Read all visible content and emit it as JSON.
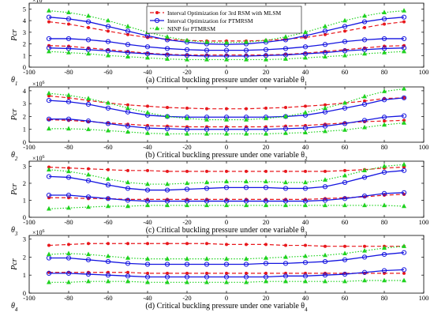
{
  "legend": {
    "position": "top-center",
    "entries": [
      {
        "label": "Interval Optimization for 3rd RSM with MLSM",
        "color": "#e8161b",
        "style": "dashed",
        "marker": "dot"
      },
      {
        "label": "Interval Optimization for PTMRSM",
        "color": "#1515e0",
        "style": "solid",
        "marker": "circle"
      },
      {
        "label": "NINP for PTMRSM",
        "color": "#1fd21f",
        "style": "dotted",
        "marker": "triangle"
      }
    ]
  },
  "colors": {
    "rsm": "#e8161b",
    "ptm": "#1515e0",
    "ninp": "#1fd21f"
  },
  "chart_data": [
    {
      "type": "line",
      "title": "(a) Critical buckling pressure under one variable θ1",
      "ylabel": "Pcr",
      "xlabel": "θ1",
      "exponent": "×10^6",
      "xlim": [
        -100,
        100
      ],
      "ylim": [
        0,
        5.5
      ],
      "xticks": [
        -100,
        -80,
        -60,
        -40,
        -20,
        0,
        20,
        40,
        60,
        80,
        100
      ],
      "yticks": [
        0,
        1,
        2,
        3,
        4,
        5
      ],
      "x": [
        -90,
        -80,
        -70,
        -60,
        -50,
        -40,
        -30,
        -20,
        -10,
        0,
        10,
        20,
        30,
        40,
        50,
        60,
        70,
        80,
        90
      ],
      "series": [
        {
          "name": "Interval Optimization for 3rd RSM with MLSM",
          "key": "rsm",
          "values": [
            3.9,
            3.7,
            3.4,
            3.1,
            2.8,
            2.55,
            2.4,
            2.3,
            2.25,
            2.25,
            2.25,
            2.3,
            2.4,
            2.55,
            2.8,
            3.1,
            3.4,
            3.7,
            3.9
          ]
        },
        {
          "key": "rsm",
          "values": [
            1.85,
            1.8,
            1.65,
            1.5,
            1.35,
            1.2,
            1.1,
            1.05,
            1.05,
            1.05,
            1.05,
            1.05,
            1.1,
            1.2,
            1.35,
            1.5,
            1.65,
            1.8,
            1.85
          ]
        },
        {
          "name": "Interval Optimization for PTMRSM",
          "key": "ptm",
          "values": [
            4.3,
            4.15,
            3.9,
            3.5,
            3.1,
            2.7,
            2.35,
            2.15,
            2.0,
            1.95,
            2.0,
            2.15,
            2.35,
            2.7,
            3.1,
            3.5,
            3.9,
            4.15,
            4.3
          ]
        },
        {
          "key": "ptm",
          "values": [
            2.45,
            2.45,
            2.35,
            2.2,
            1.95,
            1.75,
            1.6,
            1.5,
            1.45,
            1.45,
            1.45,
            1.5,
            1.6,
            1.75,
            1.95,
            2.2,
            2.35,
            2.45,
            2.45
          ]
        },
        {
          "key": "ptm",
          "values": [
            1.65,
            1.6,
            1.5,
            1.4,
            1.25,
            1.15,
            1.05,
            1.0,
            0.95,
            0.95,
            0.95,
            1.0,
            1.05,
            1.15,
            1.25,
            1.4,
            1.5,
            1.6,
            1.65
          ]
        },
        {
          "name": "NINP for PTMRSM",
          "key": "ninp",
          "values": [
            4.85,
            4.7,
            4.4,
            4.0,
            3.5,
            3.0,
            2.6,
            2.3,
            2.15,
            2.1,
            2.15,
            2.3,
            2.6,
            3.0,
            3.5,
            4.0,
            4.4,
            4.7,
            4.85
          ]
        },
        {
          "key": "ninp",
          "values": [
            1.35,
            1.25,
            1.15,
            1.0,
            0.9,
            0.8,
            0.7,
            0.65,
            0.65,
            0.65,
            0.65,
            0.65,
            0.7,
            0.8,
            0.9,
            1.0,
            1.15,
            1.25,
            1.35
          ]
        }
      ]
    },
    {
      "type": "line",
      "title": "(b) Critical buckling pressure under one variable θ2",
      "ylabel": "Pcr",
      "xlabel": "θ2",
      "exponent": "×10^6",
      "xlim": [
        -100,
        100
      ],
      "ylim": [
        0,
        4.3
      ],
      "xticks": [
        -100,
        -80,
        -60,
        -40,
        -20,
        0,
        20,
        40,
        60,
        80,
        100
      ],
      "yticks": [
        0,
        1,
        2,
        3,
        4
      ],
      "x": [
        -90,
        -80,
        -70,
        -60,
        -50,
        -40,
        -30,
        -20,
        -10,
        0,
        10,
        20,
        30,
        40,
        50,
        60,
        70,
        80,
        90
      ],
      "series": [
        {
          "key": "rsm",
          "values": [
            3.6,
            3.45,
            3.25,
            3.05,
            2.9,
            2.8,
            2.7,
            2.65,
            2.6,
            2.6,
            2.6,
            2.65,
            2.7,
            2.8,
            2.9,
            3.05,
            3.2,
            3.4,
            3.45
          ]
        },
        {
          "key": "rsm",
          "values": [
            1.75,
            1.7,
            1.6,
            1.5,
            1.4,
            1.3,
            1.25,
            1.2,
            1.2,
            1.2,
            1.2,
            1.2,
            1.25,
            1.3,
            1.4,
            1.5,
            1.6,
            1.65,
            1.7
          ]
        },
        {
          "key": "ptm",
          "values": [
            3.25,
            3.15,
            2.95,
            2.65,
            2.35,
            2.1,
            2.0,
            1.95,
            1.95,
            1.95,
            1.95,
            1.95,
            2.0,
            2.1,
            2.35,
            2.65,
            2.95,
            3.3,
            3.45
          ]
        },
        {
          "key": "ptm",
          "values": [
            1.8,
            1.8,
            1.65,
            1.45,
            1.25,
            1.1,
            1.05,
            1.0,
            1.0,
            1.0,
            1.0,
            1.0,
            1.05,
            1.1,
            1.25,
            1.45,
            1.7,
            1.95,
            2.05
          ]
        },
        {
          "key": "ninp",
          "values": [
            3.8,
            3.65,
            3.4,
            3.05,
            2.65,
            2.3,
            2.0,
            1.85,
            1.75,
            1.75,
            1.75,
            1.85,
            2.0,
            2.3,
            2.65,
            3.05,
            3.55,
            3.95,
            4.15
          ]
        },
        {
          "key": "ninp",
          "values": [
            1.05,
            1.05,
            1.0,
            0.9,
            0.8,
            0.7,
            0.65,
            0.65,
            0.65,
            0.65,
            0.65,
            0.65,
            0.7,
            0.75,
            0.85,
            0.95,
            1.15,
            1.35,
            1.5
          ]
        }
      ]
    },
    {
      "type": "line",
      "title": "(c) Critical buckling pressure under one variable θ3",
      "ylabel": "Pcr",
      "xlabel": "θ3",
      "exponent": "×10^6",
      "xlim": [
        -100,
        100
      ],
      "ylim": [
        0,
        3.3
      ],
      "xticks": [
        -100,
        -80,
        -60,
        -40,
        -20,
        0,
        20,
        40,
        60,
        80,
        100
      ],
      "yticks": [
        0,
        1,
        2,
        3
      ],
      "x": [
        -90,
        -80,
        -70,
        -60,
        -50,
        -40,
        -30,
        -20,
        -10,
        0,
        10,
        20,
        30,
        40,
        50,
        60,
        70,
        80,
        90
      ],
      "series": [
        {
          "key": "rsm",
          "values": [
            2.95,
            2.9,
            2.85,
            2.8,
            2.75,
            2.75,
            2.7,
            2.7,
            2.7,
            2.7,
            2.7,
            2.7,
            2.7,
            2.7,
            2.7,
            2.75,
            2.8,
            2.9,
            2.95
          ]
        },
        {
          "key": "rsm",
          "values": [
            1.15,
            1.15,
            1.1,
            1.1,
            1.05,
            1.05,
            1.05,
            1.05,
            1.05,
            1.05,
            1.05,
            1.05,
            1.05,
            1.05,
            1.1,
            1.15,
            1.2,
            1.3,
            1.35
          ]
        },
        {
          "key": "ptm",
          "values": [
            2.4,
            2.35,
            2.15,
            1.9,
            1.7,
            1.6,
            1.6,
            1.65,
            1.7,
            1.75,
            1.75,
            1.75,
            1.7,
            1.7,
            1.8,
            2.05,
            2.35,
            2.65,
            2.75
          ]
        },
        {
          "key": "ptm",
          "values": [
            1.3,
            1.3,
            1.2,
            1.1,
            1.0,
            0.95,
            0.95,
            0.95,
            0.95,
            0.95,
            0.95,
            0.95,
            0.95,
            0.95,
            1.0,
            1.1,
            1.25,
            1.4,
            1.45
          ]
        },
        {
          "key": "ninp",
          "values": [
            2.8,
            2.7,
            2.5,
            2.25,
            2.05,
            1.95,
            1.95,
            2.0,
            2.05,
            2.1,
            2.1,
            2.1,
            2.05,
            2.05,
            2.2,
            2.45,
            2.75,
            3.0,
            3.1
          ]
        },
        {
          "key": "ninp",
          "values": [
            0.5,
            0.55,
            0.6,
            0.65,
            0.65,
            0.7,
            0.7,
            0.7,
            0.7,
            0.7,
            0.7,
            0.7,
            0.7,
            0.7,
            0.7,
            0.7,
            0.7,
            0.7,
            0.65
          ]
        }
      ]
    },
    {
      "type": "line",
      "title": "(d) Critical buckling pressure under one variable θ4",
      "ylabel": "Pcr",
      "xlabel": "θ4",
      "exponent": "×10^6",
      "xlim": [
        -100,
        100
      ],
      "ylim": [
        0,
        3.2
      ],
      "xticks": [
        -100,
        -80,
        -60,
        -40,
        -20,
        0,
        20,
        40,
        60,
        80,
        100
      ],
      "yticks": [
        0,
        1,
        2,
        3
      ],
      "x": [
        -90,
        -80,
        -70,
        -60,
        -50,
        -40,
        -30,
        -20,
        -10,
        0,
        10,
        20,
        30,
        40,
        50,
        60,
        70,
        80,
        90
      ],
      "series": [
        {
          "key": "rsm",
          "values": [
            2.65,
            2.7,
            2.75,
            2.75,
            2.75,
            2.75,
            2.75,
            2.75,
            2.75,
            2.7,
            2.7,
            2.7,
            2.65,
            2.65,
            2.6,
            2.6,
            2.6,
            2.6,
            2.6
          ]
        },
        {
          "key": "rsm",
          "values": [
            1.15,
            1.15,
            1.15,
            1.15,
            1.15,
            1.1,
            1.1,
            1.1,
            1.1,
            1.1,
            1.1,
            1.1,
            1.1,
            1.1,
            1.1,
            1.1,
            1.1,
            1.1,
            1.1
          ]
        },
        {
          "key": "ptm",
          "values": [
            1.95,
            1.95,
            1.85,
            1.75,
            1.65,
            1.6,
            1.6,
            1.6,
            1.6,
            1.6,
            1.6,
            1.65,
            1.65,
            1.7,
            1.75,
            1.85,
            2.0,
            2.15,
            2.25
          ]
        },
        {
          "key": "ptm",
          "values": [
            1.1,
            1.1,
            1.05,
            1.0,
            0.95,
            0.9,
            0.9,
            0.9,
            0.9,
            0.9,
            0.9,
            0.9,
            0.95,
            0.95,
            1.0,
            1.05,
            1.15,
            1.25,
            1.3
          ]
        },
        {
          "key": "ninp",
          "values": [
            2.15,
            2.2,
            2.15,
            2.05,
            1.95,
            1.9,
            1.9,
            1.9,
            1.9,
            1.9,
            1.9,
            1.95,
            2.0,
            2.05,
            2.1,
            2.2,
            2.35,
            2.5,
            2.6
          ]
        },
        {
          "key": "ninp",
          "values": [
            0.6,
            0.6,
            0.65,
            0.65,
            0.65,
            0.6,
            0.6,
            0.6,
            0.6,
            0.6,
            0.6,
            0.65,
            0.65,
            0.65,
            0.65,
            0.65,
            0.7,
            0.7,
            0.7
          ]
        }
      ]
    }
  ]
}
